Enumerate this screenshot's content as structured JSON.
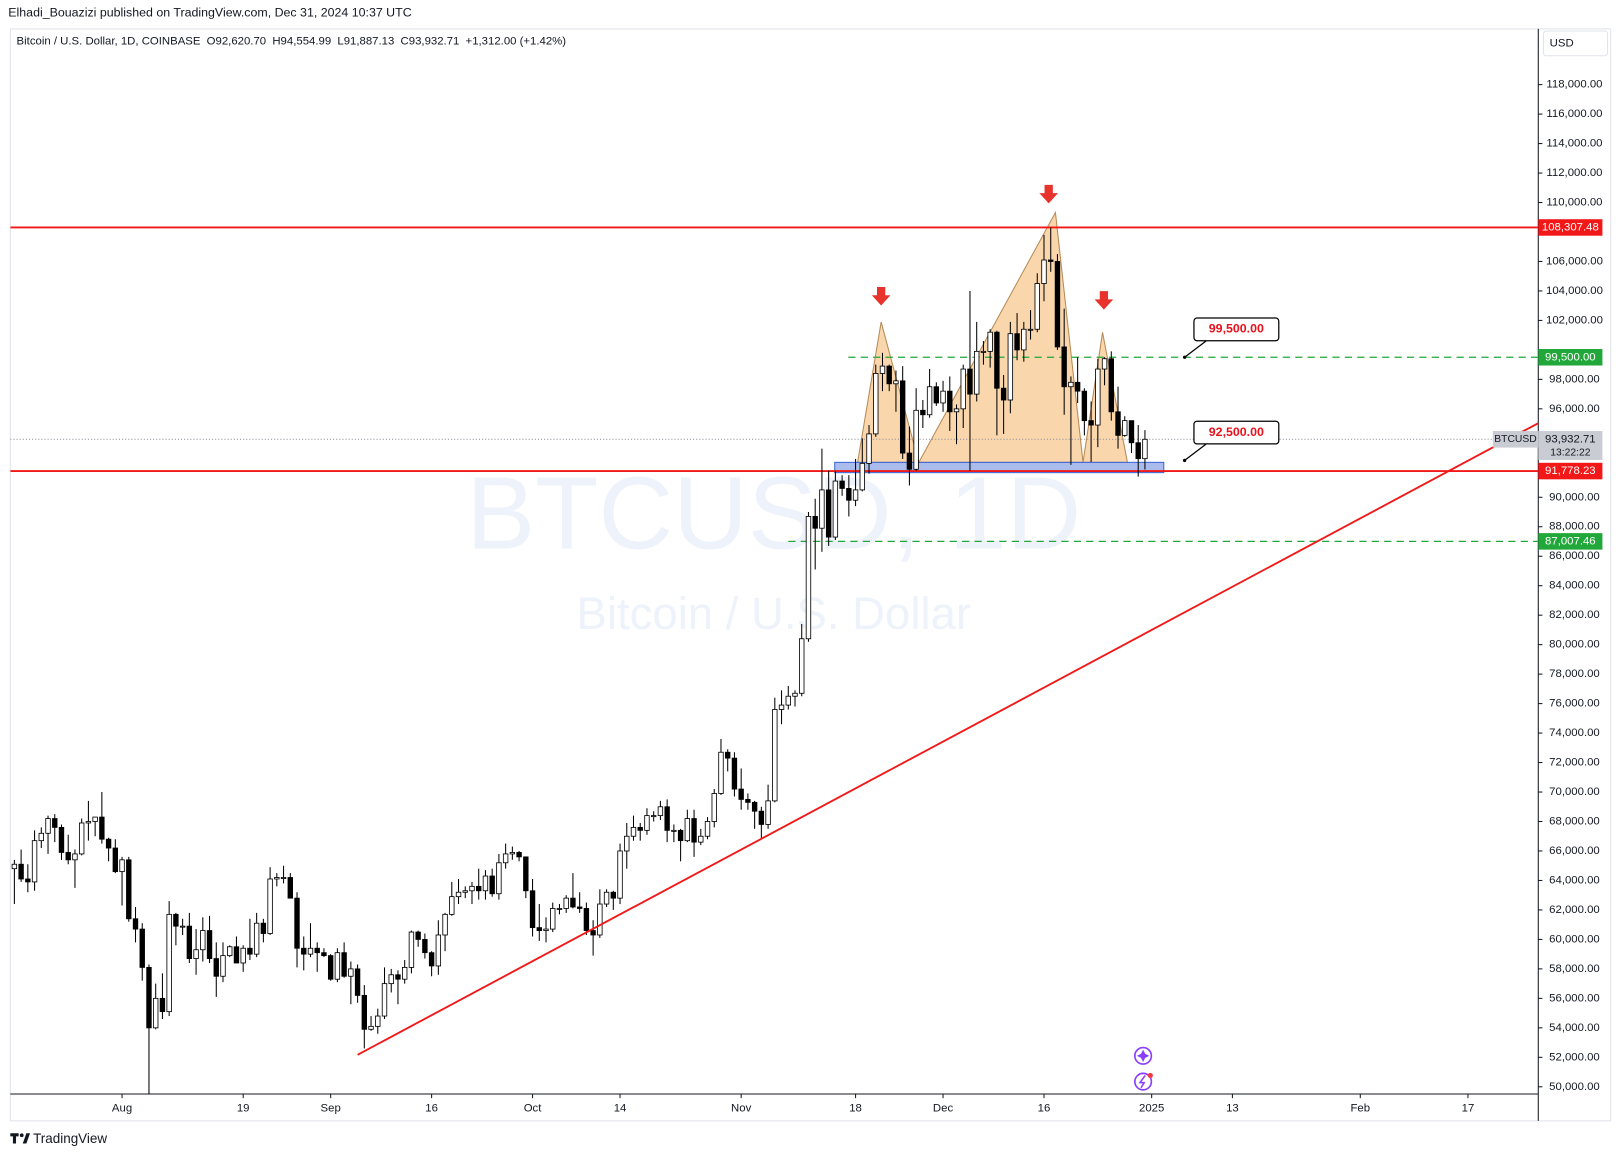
{
  "header": {
    "publisher": "Elhadi_Bouazizi published on TradingView.com, Dec 31, 2024 10:37 UTC"
  },
  "footer": {
    "brand": "TradingView"
  },
  "chart_data": {
    "type": "candlestick",
    "title": "Bitcoin / U.S. Dollar, 1D, COINBASE",
    "summary": [
      "O",
      "92,620.70",
      "H",
      "94,554.99",
      "L",
      "91,887.13",
      "C",
      "93,932.71",
      "+1,312.00 (+1.42%)"
    ],
    "currency": "USD",
    "watermark": "BTCUSD, 1D",
    "watermark_subtitle": "Bitcoin / U.S. Dollar",
    "xlim": [
      0.4,
      227.45
    ],
    "ylim": [
      49510,
      121780
    ],
    "xticks": [
      {
        "value": 17,
        "label": "Aug"
      },
      {
        "value": 35,
        "label": "19"
      },
      {
        "value": 48,
        "label": "Sep"
      },
      {
        "value": 63,
        "label": "16"
      },
      {
        "value": 78,
        "label": "Oct"
      },
      {
        "value": 91,
        "label": "14"
      },
      {
        "value": 109,
        "label": "Nov"
      },
      {
        "value": 126,
        "label": "18"
      },
      {
        "value": 139,
        "label": "Dec"
      },
      {
        "value": 154,
        "label": "16"
      },
      {
        "value": 170,
        "label": "2025"
      },
      {
        "value": 182,
        "label": "13"
      },
      {
        "value": 201,
        "label": "Feb"
      },
      {
        "value": 217,
        "label": "17"
      }
    ],
    "yticks": [
      {
        "value": 50000,
        "label": "50,000.00"
      },
      {
        "value": 52000,
        "label": "52,000.00"
      },
      {
        "value": 54000,
        "label": "54,000.00"
      },
      {
        "value": 56000,
        "label": "56,000.00"
      },
      {
        "value": 58000,
        "label": "58,000.00"
      },
      {
        "value": 60000,
        "label": "60,000.00"
      },
      {
        "value": 62000,
        "label": "62,000.00"
      },
      {
        "value": 64000,
        "label": "64,000.00"
      },
      {
        "value": 66000,
        "label": "66,000.00"
      },
      {
        "value": 68000,
        "label": "68,000.00"
      },
      {
        "value": 70000,
        "label": "70,000.00"
      },
      {
        "value": 72000,
        "label": "72,000.00"
      },
      {
        "value": 74000,
        "label": "74,000.00"
      },
      {
        "value": 76000,
        "label": "76,000.00"
      },
      {
        "value": 78000,
        "label": "78,000.00"
      },
      {
        "value": 80000,
        "label": "80,000.00"
      },
      {
        "value": 82000,
        "label": "82,000.00"
      },
      {
        "value": 84000,
        "label": "84,000.00"
      },
      {
        "value": 86000,
        "label": "86,000.00"
      },
      {
        "value": 88000,
        "label": "88,000.00"
      },
      {
        "value": 90000,
        "label": "90,000.00"
      },
      {
        "value": 96000,
        "label": "96,000.00"
      },
      {
        "value": 98000,
        "label": "98,000.00"
      },
      {
        "value": 102000,
        "label": "102,000.00"
      },
      {
        "value": 104000,
        "label": "104,000.00"
      },
      {
        "value": 106000,
        "label": "106,000.00"
      },
      {
        "value": 110000,
        "label": "110,000.00"
      },
      {
        "value": 112000,
        "label": "112,000.00"
      },
      {
        "value": 114000,
        "label": "114,000.00"
      },
      {
        "value": 116000,
        "label": "116,000.00"
      },
      {
        "value": 118000,
        "label": "118,000.00"
      }
    ],
    "up_color": "#ffffff",
    "down_color": "#000000",
    "open": [
      60800,
      64800,
      65100,
      64100,
      63900,
      66700,
      67200,
      68200,
      67600,
      65900,
      65400,
      65800,
      67900,
      68000,
      68300,
      66800,
      66200,
      64600,
      65400,
      61400,
      60700,
      58100,
      54000,
      56000,
      55100,
      61700,
      60900,
      60900,
      58700,
      59300,
      60600,
      58700,
      57500,
      58900,
      59500,
      58400,
      59400,
      59000,
      61100,
      60400,
      64100,
      64200,
      64200,
      62800,
      59400,
      59000,
      59400,
      59100,
      58900,
      57300,
      59100,
      57500,
      58000,
      56200,
      53900,
      54100,
      54800,
      57000,
      57600,
      57300,
      58100,
      60500,
      60000,
      59100,
      58200,
      60300,
      61700,
      62900,
      63200,
      63300,
      63600,
      63300,
      64300,
      63100,
      65200,
      65800,
      65900,
      65600,
      63300,
      60800,
      60600,
      60700,
      62100,
      62100,
      62800,
      62200,
      62100,
      60600,
      60300,
      62400,
      63200,
      62800,
      66000,
      67000,
      67600,
      67400,
      68400,
      68400,
      69000,
      67400,
      67400,
      66700,
      68200,
      66600,
      67000,
      68000,
      69900,
      72700,
      72300,
      70200,
      69500,
      69300,
      68700,
      67800,
      69400,
      75600,
      75900,
      76500,
      76700,
      80400,
      88700,
      87900,
      90500,
      87300,
      91100,
      90600,
      89800,
      90500,
      92300,
      94300,
      98400,
      98900,
      97700,
      97900,
      93000,
      91900,
      95900,
      95600,
      97500,
      96400,
      97200,
      95800,
      96000,
      98700,
      97000,
      99900,
      99900,
      101200,
      97400,
      96600,
      101100,
      100000,
      101400,
      101400,
      104500,
      106100,
      106000,
      100200,
      97500,
      97800,
      97200,
      95200,
      94900,
      98700,
      99400,
      95800,
      94200,
      95200,
      93700,
      92620.7
    ],
    "high": [
      64900,
      65400,
      66100,
      65100,
      67400,
      67600,
      68400,
      68500,
      67800,
      67100,
      66100,
      68200,
      69400,
      68300,
      70000,
      66900,
      66800,
      65600,
      65600,
      62200,
      61100,
      58300,
      57000,
      57700,
      62600,
      61800,
      61400,
      61800,
      60700,
      61500,
      61600,
      59800,
      59800,
      59600,
      60200,
      59600,
      61400,
      61800,
      61400,
      64900,
      64500,
      65000,
      64500,
      63200,
      60200,
      61100,
      59800,
      59400,
      59000,
      59400,
      59800,
      58500,
      58300,
      56900,
      54800,
      55300,
      58100,
      58000,
      57900,
      58600,
      60600,
      60600,
      60400,
      59200,
      61300,
      61800,
      63900,
      64100,
      63600,
      63900,
      64800,
      64700,
      64800,
      65800,
      66500,
      66300,
      66000,
      65600,
      64100,
      62400,
      61500,
      62500,
      62400,
      63000,
      64500,
      63200,
      62500,
      61300,
      63400,
      63400,
      63300,
      66500,
      67900,
      68400,
      67900,
      68900,
      68700,
      69400,
      69500,
      67800,
      67500,
      68800,
      68800,
      67500,
      68300,
      70200,
      73600,
      72900,
      72700,
      71600,
      69900,
      69400,
      69000,
      70500,
      76400,
      76900,
      77200,
      76900,
      81400,
      89000,
      89900,
      93300,
      91800,
      91800,
      91500,
      91500,
      92600,
      94000,
      94900,
      99000,
      99800,
      99000,
      98600,
      98900,
      94800,
      97400,
      96600,
      98700,
      97800,
      97900,
      98200,
      96300,
      99000,
      104000,
      101900,
      100600,
      101400,
      101300,
      98300,
      101900,
      102500,
      101900,
      102700,
      105200,
      107800,
      108300,
      106500,
      102800,
      98200,
      99500,
      97400,
      96500,
      99400,
      99500,
      99900,
      97500,
      95500,
      95200,
      94900,
      94554.99
    ],
    "low": [
      60600,
      62400,
      63900,
      63200,
      63300,
      66200,
      65800,
      66600,
      65400,
      65100,
      63500,
      65700,
      66700,
      67000,
      66500,
      65300,
      64500,
      62300,
      61200,
      59800,
      57200,
      49100,
      53900,
      54600,
      54800,
      59600,
      60300,
      58400,
      57600,
      58500,
      58400,
      56100,
      57100,
      58800,
      58400,
      57800,
      58600,
      58800,
      59800,
      60300,
      63600,
      63800,
      62800,
      58100,
      57900,
      58800,
      57800,
      58800,
      57200,
      57100,
      57400,
      55600,
      55700,
      52600,
      53800,
      53600,
      54600,
      56400,
      55600,
      57000,
      57700,
      59500,
      58700,
      57500,
      57600,
      59200,
      61600,
      62400,
      62800,
      62400,
      62700,
      62700,
      62900,
      62700,
      64800,
      65400,
      65300,
      62800,
      60200,
      59900,
      59800,
      60500,
      61700,
      61800,
      62100,
      61800,
      60300,
      58900,
      60100,
      62200,
      62000,
      62400,
      64800,
      66700,
      66700,
      67100,
      68000,
      68100,
      66600,
      66600,
      65300,
      66600,
      65600,
      66400,
      66800,
      67600,
      69800,
      71400,
      69700,
      68800,
      68800,
      67500,
      66800,
      67500,
      69300,
      74600,
      75600,
      75800,
      76500,
      80200,
      85100,
      86300,
      86700,
      87100,
      90100,
      88700,
      89400,
      90400,
      91600,
      94100,
      97200,
      97200,
      95800,
      92600,
      90800,
      91800,
      94700,
      95400,
      96200,
      95800,
      94500,
      93600,
      94700,
      91800,
      96500,
      99000,
      98800,
      94200,
      94300,
      95700,
      99300,
      99200,
      100700,
      101200,
      103300,
      105300,
      100000,
      95600,
      92200,
      96400,
      94200,
      92400,
      93400,
      97600,
      95200,
      93300,
      94100,
      93000,
      91400,
      91887.13
    ],
    "close": [
      64800,
      65100,
      64100,
      63900,
      66700,
      67200,
      68200,
      67600,
      65900,
      65400,
      65800,
      67900,
      68000,
      68300,
      66800,
      66200,
      64600,
      65400,
      61400,
      60700,
      58100,
      54000,
      56000,
      55100,
      61700,
      60900,
      60900,
      58700,
      59300,
      60600,
      58700,
      57500,
      58900,
      59500,
      58400,
      59400,
      59000,
      61100,
      60400,
      64100,
      64200,
      64200,
      62800,
      59400,
      59000,
      59400,
      59100,
      58900,
      57300,
      59100,
      57500,
      58000,
      56200,
      53900,
      54100,
      54800,
      57000,
      57600,
      57300,
      58100,
      60500,
      60000,
      59100,
      58200,
      60300,
      61700,
      62900,
      63200,
      63300,
      63600,
      63300,
      64300,
      63100,
      65200,
      65800,
      65900,
      65600,
      63300,
      60800,
      60600,
      60700,
      62100,
      62100,
      62800,
      62200,
      62100,
      60600,
      60300,
      62400,
      63200,
      62800,
      66000,
      67000,
      67600,
      67400,
      68400,
      68400,
      69000,
      67400,
      67400,
      66700,
      68200,
      66600,
      67000,
      68000,
      69900,
      72700,
      72300,
      70200,
      69500,
      69300,
      68700,
      67800,
      69400,
      75600,
      75900,
      76500,
      76700,
      80400,
      88700,
      87900,
      90500,
      87300,
      91100,
      90600,
      89800,
      90500,
      92300,
      94300,
      98400,
      98900,
      97700,
      97900,
      93000,
      91900,
      95900,
      95600,
      97500,
      96400,
      97200,
      95800,
      96000,
      98700,
      97000,
      99900,
      99900,
      101200,
      97400,
      96600,
      101100,
      100000,
      101400,
      101400,
      104500,
      106100,
      106000,
      100200,
      97500,
      97800,
      97200,
      95200,
      94900,
      98700,
      99400,
      95800,
      94200,
      95200,
      93700,
      92620.7,
      93932.71
    ],
    "levels": [
      {
        "value": 108307.48,
        "label": "108,307.48",
        "color": "#f21818",
        "style": "solid"
      },
      {
        "value": 99500,
        "label": "99,500.00",
        "color": "#22a83a",
        "style": "dashed"
      },
      {
        "value": 91778.23,
        "label": "91,778.23",
        "color": "#f21818",
        "style": "solid"
      },
      {
        "value": 87007.46,
        "label": "87,007.46",
        "color": "#22a83a",
        "style": "dashed"
      }
    ],
    "last_price": {
      "value": 93932.71,
      "label": "93,932.71",
      "symbol": "BTCUSD",
      "countdown": "13:22:22"
    },
    "trendline": {
      "x": [
        52.0,
        227.45
      ],
      "y": [
        52170,
        95030
      ],
      "color": "#f21818"
    },
    "pattern": {
      "x": [
        126.3,
        129.8,
        135.4,
        155.7,
        159.8,
        162.7,
        166.4
      ],
      "y": [
        92370,
        101890,
        92370,
        109320,
        92370,
        101190,
        92370
      ],
      "color": "#f7c88f"
    },
    "zone": {
      "x": [
        122.9,
        171.8
      ],
      "y": [
        91670,
        92370
      ],
      "color": "#6f8fe0"
    },
    "arrows": {
      "x": [
        129.8,
        154.7,
        162.9
      ],
      "y": [
        103570,
        110500,
        103290
      ],
      "color": "#e8332d"
    },
    "callouts": [
      {
        "value": 99500,
        "label": "99,500.00",
        "x": 174.9
      },
      {
        "value": 92500,
        "label": "92,500.00",
        "x": 174.9
      }
    ]
  }
}
